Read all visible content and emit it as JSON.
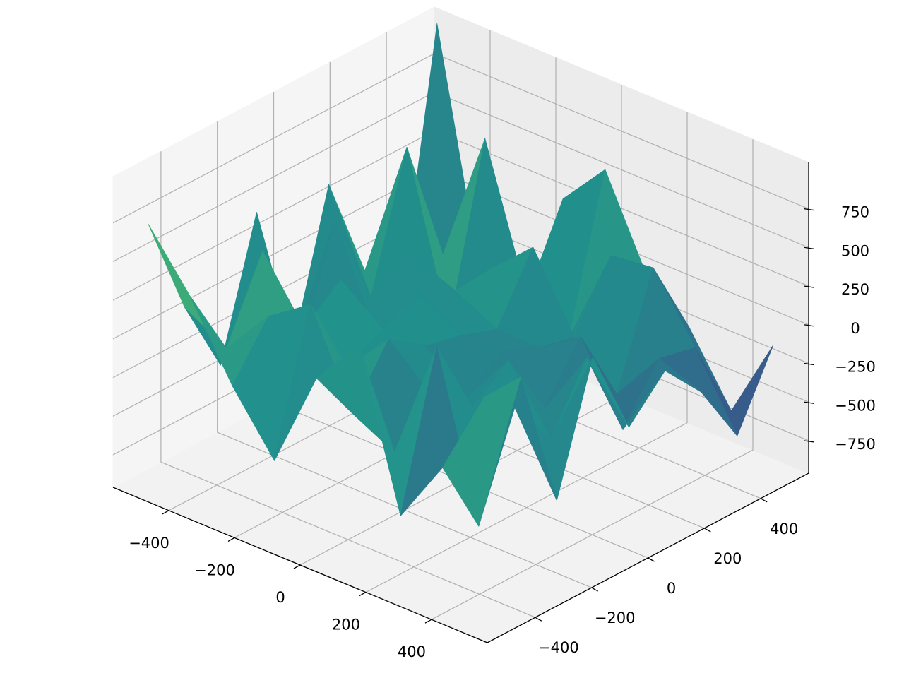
{
  "chart_data": {
    "type": "surface",
    "x": [
      -512,
      -384,
      -256,
      -128,
      0,
      128,
      256,
      384,
      512
    ],
    "y": [
      -512,
      -384,
      -256,
      -128,
      0,
      128,
      256,
      384,
      512
    ],
    "z": [
      [
        737,
        381,
        -84,
        -454,
        193,
        519,
        -472,
        -47,
        522
      ],
      [
        78,
        -77,
        245,
        432,
        -159,
        -299,
        500,
        -549,
        528
      ],
      [
        -421,
        430,
        39,
        -99,
        198,
        -45,
        -20,
        96,
        -393
      ],
      [
        445,
        -440,
        235,
        28,
        33,
        -188,
        165,
        -232,
        410
      ],
      [
        -555,
        386,
        -273,
        118,
        -25,
        -11,
        -272,
        169,
        -165
      ],
      [
        379,
        -237,
        146,
        30,
        -108,
        -112,
        69,
        -417,
        77
      ],
      [
        -303,
        609,
        -442,
        47,
        301,
        -171,
        -424,
        -81,
        -184
      ],
      [
        -598,
        -210,
        654,
        -257,
        -406,
        237,
        271,
        -134,
        -591
      ],
      [
        1050,
        -419,
        -596,
        256,
        557,
        -25,
        -238,
        -665,
        -126
      ]
    ],
    "colormap": "viridis",
    "xlim": [
      -570,
      570
    ],
    "ylim": [
      -570,
      570
    ],
    "zlim": [
      -960,
      1050
    ],
    "xticks": [
      {
        "value": -400,
        "label": "−400"
      },
      {
        "value": -200,
        "label": "−200"
      },
      0,
      200,
      400
    ],
    "yticks": [
      {
        "value": -400,
        "label": "−400"
      },
      {
        "value": -200,
        "label": "−200"
      },
      0,
      200,
      400
    ],
    "zticks": [
      {
        "value": -750,
        "label": "−750"
      },
      {
        "value": -500,
        "label": "−500"
      },
      {
        "value": -250,
        "label": "−250"
      },
      0,
      250,
      500,
      750
    ],
    "grid": true
  }
}
